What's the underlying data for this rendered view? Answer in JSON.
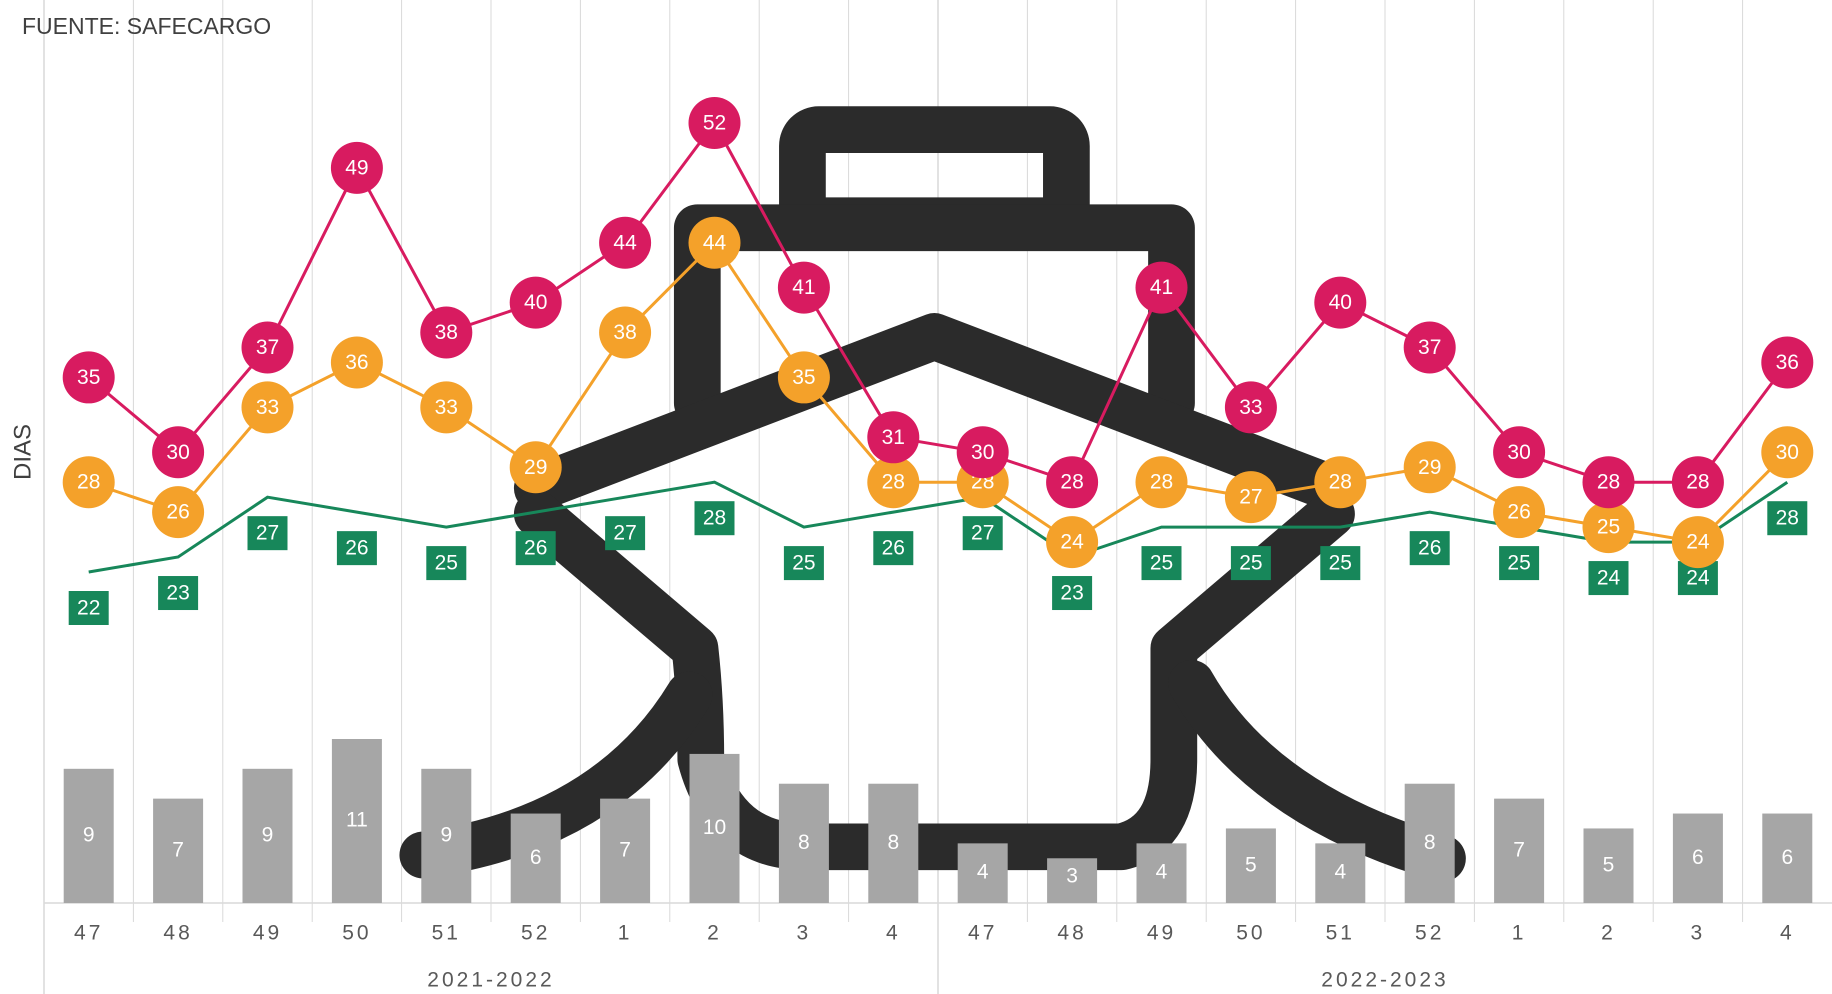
{
  "chart_data": {
    "type": "line",
    "title": "FUENTE: SAFECARGO",
    "y_label": "DIAS",
    "groups": [
      {
        "label": "2021-2022",
        "categories": [
          "47",
          "48",
          "49",
          "50",
          "51",
          "52",
          "1",
          "2",
          "3",
          "4"
        ]
      },
      {
        "label": "2022-2023",
        "categories": [
          "47",
          "48",
          "49",
          "50",
          "51",
          "52",
          "1",
          "2",
          "3",
          "4"
        ]
      }
    ],
    "series": [
      {
        "type": "bar",
        "color": "#a6a6a6",
        "values": [
          9,
          7,
          9,
          11,
          9,
          6,
          7,
          10,
          8,
          8,
          4,
          3,
          4,
          5,
          4,
          8,
          7,
          5,
          6,
          6
        ]
      },
      {
        "color": "#d81b60",
        "marker": "circle",
        "values": [
          35,
          30,
          37,
          49,
          38,
          40,
          44,
          52,
          41,
          31,
          30,
          28,
          41,
          33,
          40,
          37,
          30,
          28,
          28,
          36
        ]
      },
      {
        "color": "#f4a12a",
        "marker": "circle",
        "values": [
          28,
          26,
          33,
          36,
          33,
          29,
          38,
          44,
          35,
          28,
          28,
          24,
          28,
          27,
          28,
          29,
          26,
          25,
          24,
          30
        ]
      },
      {
        "color": "#17875a",
        "marker": "box-below",
        "values": [
          22,
          23,
          27,
          26,
          25,
          26,
          27,
          28,
          25,
          26,
          27,
          23,
          25,
          25,
          25,
          26,
          25,
          24,
          24,
          28
        ]
      }
    ],
    "grid": true
  }
}
